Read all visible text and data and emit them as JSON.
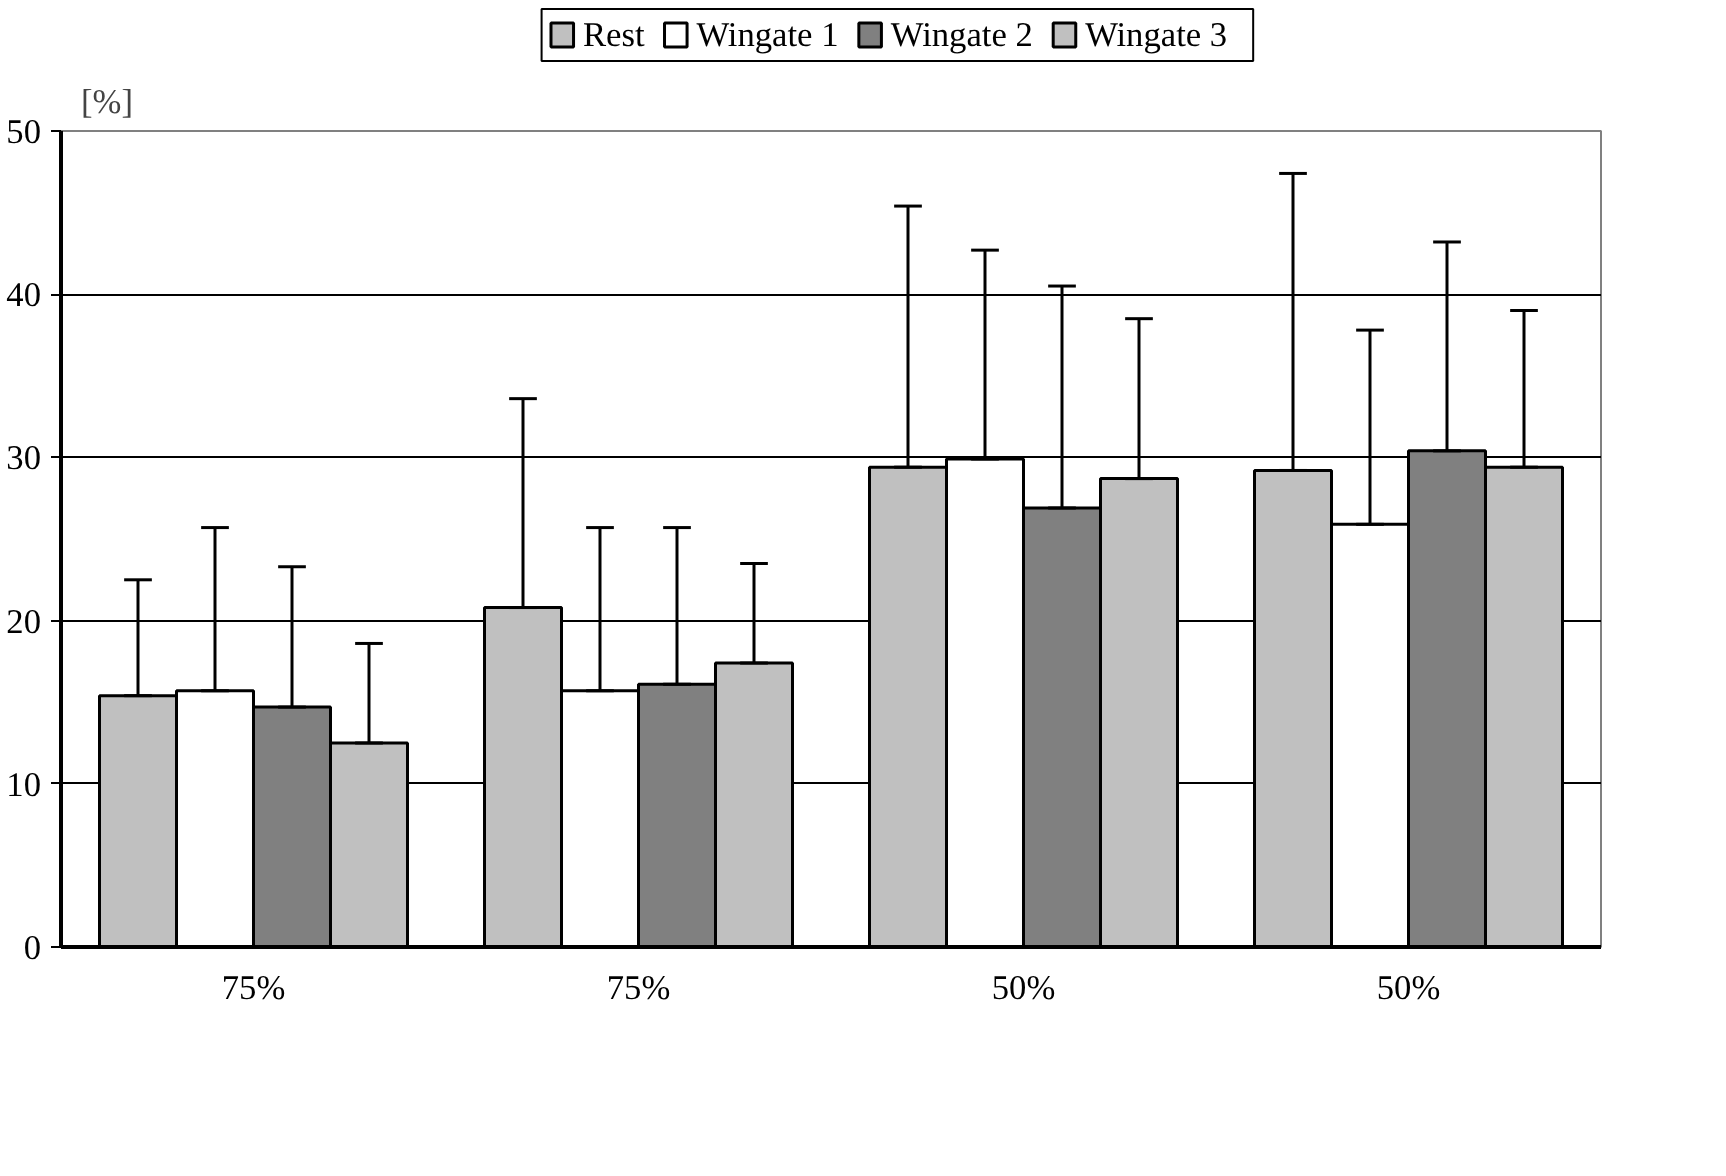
{
  "chart_data": {
    "type": "bar",
    "ylabel": "[%]",
    "categories": [
      "75%",
      "75%",
      "50%",
      "50%"
    ],
    "series": [
      {
        "name": "Rest",
        "color": "#c0c0c0",
        "values": [
          15.4,
          20.8,
          29.4,
          29.2
        ],
        "errors": [
          [
            15.4,
            22.5
          ],
          [
            20.8,
            33.6
          ],
          [
            29.4,
            45.4
          ],
          [
            29.2,
            47.4
          ]
        ]
      },
      {
        "name": "Wingate 1",
        "color": "#ffffff",
        "values": [
          15.7,
          15.7,
          29.9,
          25.9
        ],
        "errors": [
          [
            15.7,
            25.7
          ],
          [
            15.7,
            25.7
          ],
          [
            29.9,
            42.7
          ],
          [
            25.9,
            37.8
          ]
        ]
      },
      {
        "name": "Wingate 2",
        "color": "#808080",
        "values": [
          14.7,
          16.1,
          26.9,
          30.4
        ],
        "errors": [
          [
            14.7,
            23.3
          ],
          [
            16.1,
            25.7
          ],
          [
            26.9,
            40.5
          ],
          [
            30.4,
            43.2
          ]
        ]
      },
      {
        "name": "Wingate 3",
        "color": "#c0c0c0",
        "values": [
          12.5,
          17.4,
          28.7,
          29.4
        ],
        "errors": [
          [
            12.5,
            18.6
          ],
          [
            17.4,
            23.5
          ],
          [
            28.7,
            38.5
          ],
          [
            29.4,
            39.0
          ]
        ]
      }
    ],
    "ylim": [
      0,
      50
    ],
    "yticks": [
      0,
      10,
      20,
      30,
      40,
      50
    ],
    "grid": "y",
    "legend": "top"
  }
}
